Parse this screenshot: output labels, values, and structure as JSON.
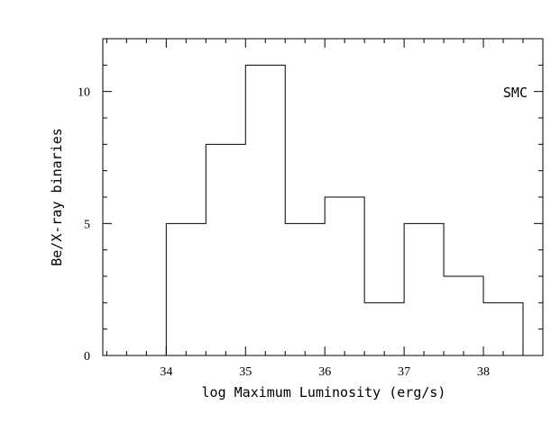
{
  "chart_data": {
    "type": "bar",
    "histogram": true,
    "bin_edges": [
      34,
      34.5,
      35,
      35.5,
      36,
      36.5,
      37,
      37.5,
      38,
      38.5
    ],
    "values": [
      5,
      8,
      11,
      5,
      6,
      2,
      5,
      3,
      2
    ],
    "xlabel": "log Maximum Luminosity (erg/s)",
    "ylabel": "Be/X-ray binaries",
    "annotation": "SMC",
    "xlim": [
      33.2,
      38.75
    ],
    "ylim": [
      0,
      12
    ],
    "x_major_ticks": [
      34,
      35,
      36,
      37,
      38
    ],
    "x_tick_labels": [
      "34",
      "35",
      "36",
      "37",
      "38"
    ],
    "x_minor_step": 0.25,
    "y_major_ticks": [
      0,
      5,
      10
    ],
    "y_tick_labels": [
      "0",
      "5",
      "10"
    ],
    "y_minor_step": 1,
    "grid": false
  }
}
